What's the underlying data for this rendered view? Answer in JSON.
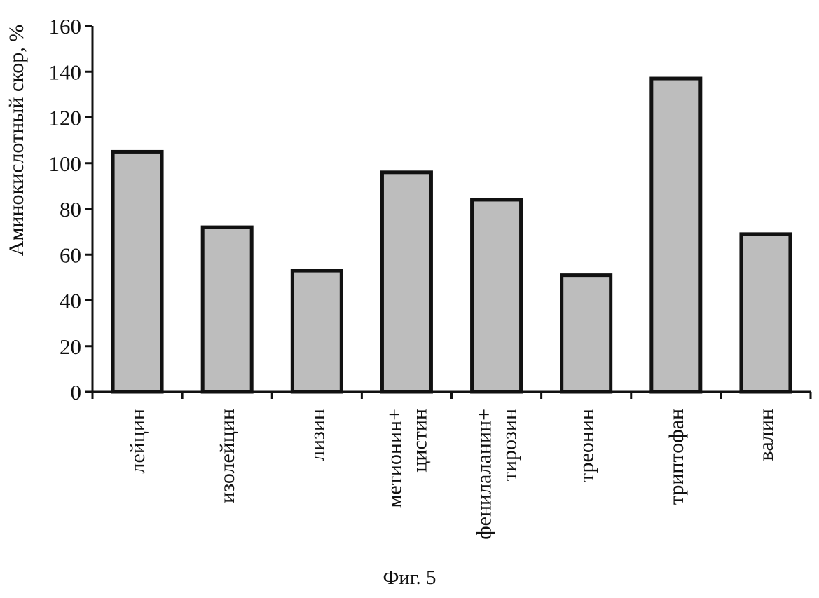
{
  "chart_data": {
    "type": "bar",
    "categories": [
      [
        "лейцин"
      ],
      [
        "изолейцин"
      ],
      [
        "лизин"
      ],
      [
        "метионин+",
        "цистин"
      ],
      [
        "фенилаланин+",
        "тирозин"
      ],
      [
        "треонин"
      ],
      [
        "триптофан"
      ],
      [
        "валин"
      ]
    ],
    "values": [
      105,
      72,
      53,
      96,
      84,
      51,
      137,
      69
    ],
    "ylabel": "Аминокислотный скор, %",
    "xlabel": "",
    "ylim": [
      0,
      160
    ],
    "yticks": [
      0,
      20,
      40,
      60,
      80,
      100,
      120,
      140,
      160
    ],
    "bar_fill": "#bdbdbd",
    "bar_stroke": "#111111",
    "grid": false,
    "legend": "none"
  },
  "caption": "Фиг. 5"
}
